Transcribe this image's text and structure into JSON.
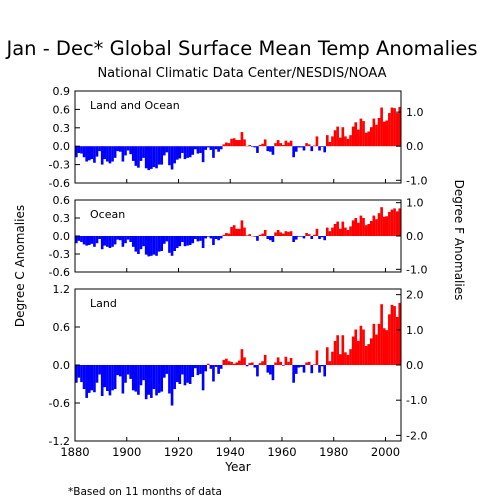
{
  "title": "Jan - Dec* Global Surface Mean Temp Anomalies",
  "subtitle": "National Climatic Data Center/NESDIS/NOAA",
  "footnote": "*Based on 11 months of data",
  "colors": {
    "positive": "#ff0000",
    "negative": "#0000ff",
    "axis": "#000000"
  },
  "chart_data": {
    "type": "bar",
    "xlabel": "Year",
    "ylabel_left": "Degree C Anomalies",
    "ylabel_right": "Degree F Anomalies",
    "x_ticks": [
      "1880",
      "1900",
      "1920",
      "1940",
      "1960",
      "1980",
      "2000"
    ],
    "x_range": [
      1880,
      2005
    ],
    "years": [
      1880,
      1881,
      1882,
      1883,
      1884,
      1885,
      1886,
      1887,
      1888,
      1889,
      1890,
      1891,
      1892,
      1893,
      1894,
      1895,
      1896,
      1897,
      1898,
      1899,
      1900,
      1901,
      1902,
      1903,
      1904,
      1905,
      1906,
      1907,
      1908,
      1909,
      1910,
      1911,
      1912,
      1913,
      1914,
      1915,
      1916,
      1917,
      1918,
      1919,
      1920,
      1921,
      1922,
      1923,
      1924,
      1925,
      1926,
      1927,
      1928,
      1929,
      1930,
      1931,
      1932,
      1933,
      1934,
      1935,
      1936,
      1937,
      1938,
      1939,
      1940,
      1941,
      1942,
      1943,
      1944,
      1945,
      1946,
      1947,
      1948,
      1949,
      1950,
      1951,
      1952,
      1953,
      1954,
      1955,
      1956,
      1957,
      1958,
      1959,
      1960,
      1961,
      1962,
      1963,
      1964,
      1965,
      1966,
      1967,
      1968,
      1969,
      1970,
      1971,
      1972,
      1973,
      1974,
      1975,
      1976,
      1977,
      1978,
      1979,
      1980,
      1981,
      1982,
      1983,
      1984,
      1985,
      1986,
      1987,
      1988,
      1989,
      1990,
      1991,
      1992,
      1993,
      1994,
      1995,
      1996,
      1997,
      1998,
      1999,
      2000,
      2001,
      2002,
      2003,
      2004,
      2005
    ],
    "panels": [
      {
        "name": "Land and Ocean",
        "ylim": [
          -0.6,
          0.9
        ],
        "y_ticks": [
          "0.9",
          "0.6",
          "0.3",
          "0.0",
          "-0.3",
          "-0.6"
        ],
        "y_ticks_right": [
          "1.0",
          "0.0",
          "-1.0"
        ],
        "values": [
          -0.18,
          -0.11,
          -0.12,
          -0.18,
          -0.25,
          -0.23,
          -0.21,
          -0.27,
          -0.17,
          -0.08,
          -0.3,
          -0.21,
          -0.25,
          -0.28,
          -0.25,
          -0.19,
          -0.08,
          -0.09,
          -0.25,
          -0.15,
          -0.07,
          -0.13,
          -0.24,
          -0.32,
          -0.35,
          -0.24,
          -0.19,
          -0.36,
          -0.39,
          -0.37,
          -0.34,
          -0.36,
          -0.3,
          -0.3,
          -0.15,
          -0.1,
          -0.31,
          -0.38,
          -0.28,
          -0.22,
          -0.2,
          -0.11,
          -0.21,
          -0.19,
          -0.18,
          -0.14,
          -0.05,
          -0.12,
          -0.11,
          -0.26,
          -0.06,
          -0.02,
          -0.06,
          -0.19,
          -0.05,
          -0.09,
          -0.05,
          0.03,
          0.06,
          0.05,
          0.12,
          0.13,
          0.1,
          0.1,
          0.23,
          0.11,
          0.0,
          0.02,
          -0.01,
          -0.02,
          -0.11,
          0.02,
          0.04,
          0.11,
          -0.08,
          -0.09,
          -0.14,
          0.05,
          0.1,
          0.05,
          0.02,
          0.09,
          0.06,
          0.09,
          -0.18,
          -0.09,
          -0.02,
          -0.02,
          -0.07,
          0.05,
          0.03,
          -0.08,
          0.01,
          0.16,
          -0.07,
          -0.01,
          -0.1,
          0.18,
          0.07,
          0.16,
          0.26,
          0.32,
          0.14,
          0.31,
          0.16,
          0.12,
          0.18,
          0.32,
          0.39,
          0.27,
          0.45,
          0.41,
          0.22,
          0.24,
          0.31,
          0.45,
          0.35,
          0.46,
          0.63,
          0.4,
          0.42,
          0.54,
          0.63,
          0.62,
          0.54,
          0.64
        ]
      },
      {
        "name": "Ocean",
        "ylim": [
          -0.6,
          0.6
        ],
        "y_ticks": [
          "0.6",
          "0.3",
          "0.0",
          "-0.3",
          "-0.6"
        ],
        "y_ticks_right": [
          "1.0",
          "0.0",
          "-1.0"
        ],
        "values": [
          -0.12,
          -0.08,
          -0.1,
          -0.14,
          -0.16,
          -0.15,
          -0.13,
          -0.18,
          -0.12,
          -0.05,
          -0.22,
          -0.16,
          -0.18,
          -0.2,
          -0.18,
          -0.14,
          -0.06,
          -0.07,
          -0.18,
          -0.12,
          -0.06,
          -0.1,
          -0.18,
          -0.26,
          -0.3,
          -0.22,
          -0.17,
          -0.31,
          -0.34,
          -0.33,
          -0.31,
          -0.33,
          -0.26,
          -0.25,
          -0.13,
          -0.09,
          -0.28,
          -0.33,
          -0.25,
          -0.2,
          -0.17,
          -0.1,
          -0.17,
          -0.16,
          -0.15,
          -0.12,
          -0.05,
          -0.09,
          -0.08,
          -0.2,
          -0.04,
          -0.01,
          -0.04,
          -0.15,
          -0.05,
          -0.07,
          -0.04,
          0.02,
          0.05,
          0.04,
          0.15,
          0.18,
          0.12,
          0.12,
          0.26,
          0.14,
          0.01,
          0.03,
          0.0,
          -0.01,
          -0.08,
          0.02,
          0.04,
          0.1,
          -0.05,
          -0.07,
          -0.1,
          0.06,
          0.1,
          0.06,
          0.04,
          0.08,
          0.07,
          0.08,
          -0.1,
          -0.06,
          -0.01,
          -0.01,
          -0.04,
          0.05,
          0.03,
          -0.05,
          0.02,
          0.12,
          -0.05,
          -0.02,
          -0.07,
          0.14,
          0.08,
          0.14,
          0.2,
          0.24,
          0.12,
          0.24,
          0.14,
          0.1,
          0.16,
          0.26,
          0.3,
          0.22,
          0.34,
          0.3,
          0.18,
          0.2,
          0.25,
          0.34,
          0.28,
          0.38,
          0.48,
          0.32,
          0.33,
          0.4,
          0.44,
          0.46,
          0.41,
          0.46
        ]
      },
      {
        "name": "Land",
        "ylim": [
          -1.2,
          1.2
        ],
        "y_ticks": [
          "1.2",
          "0.6",
          "0.0",
          "-0.6",
          "-1.2"
        ],
        "y_ticks_right": [
          "2.0",
          "1.0",
          "0.0",
          "-1.0",
          "-2.0"
        ],
        "values": [
          -0.28,
          -0.2,
          -0.27,
          -0.38,
          -0.52,
          -0.44,
          -0.4,
          -0.43,
          -0.28,
          -0.15,
          -0.49,
          -0.35,
          -0.41,
          -0.48,
          -0.4,
          -0.38,
          -0.16,
          -0.18,
          -0.45,
          -0.28,
          -0.15,
          -0.22,
          -0.4,
          -0.42,
          -0.47,
          -0.32,
          -0.24,
          -0.54,
          -0.47,
          -0.52,
          -0.38,
          -0.48,
          -0.44,
          -0.42,
          -0.2,
          -0.14,
          -0.45,
          -0.64,
          -0.38,
          -0.27,
          -0.3,
          -0.15,
          -0.32,
          -0.28,
          -0.3,
          -0.19,
          -0.05,
          -0.16,
          -0.14,
          -0.4,
          -0.1,
          0.02,
          -0.06,
          -0.26,
          -0.03,
          -0.14,
          -0.06,
          0.08,
          0.1,
          0.06,
          0.05,
          0.02,
          0.04,
          0.07,
          0.25,
          0.12,
          -0.02,
          0.03,
          0.04,
          -0.04,
          -0.18,
          0.03,
          0.06,
          0.16,
          -0.12,
          -0.15,
          -0.24,
          0.04,
          0.12,
          0.05,
          -0.01,
          0.13,
          0.05,
          0.11,
          -0.28,
          -0.14,
          -0.04,
          -0.03,
          -0.12,
          0.04,
          0.05,
          -0.13,
          0.01,
          0.23,
          -0.12,
          -0.02,
          -0.18,
          0.28,
          0.06,
          0.21,
          0.38,
          0.47,
          0.17,
          0.47,
          0.2,
          0.16,
          0.25,
          0.45,
          0.56,
          0.38,
          0.62,
          0.56,
          0.3,
          0.33,
          0.42,
          0.65,
          0.48,
          0.65,
          0.96,
          0.58,
          0.55,
          0.8,
          0.95,
          0.93,
          0.76,
          0.98
        ]
      }
    ]
  }
}
